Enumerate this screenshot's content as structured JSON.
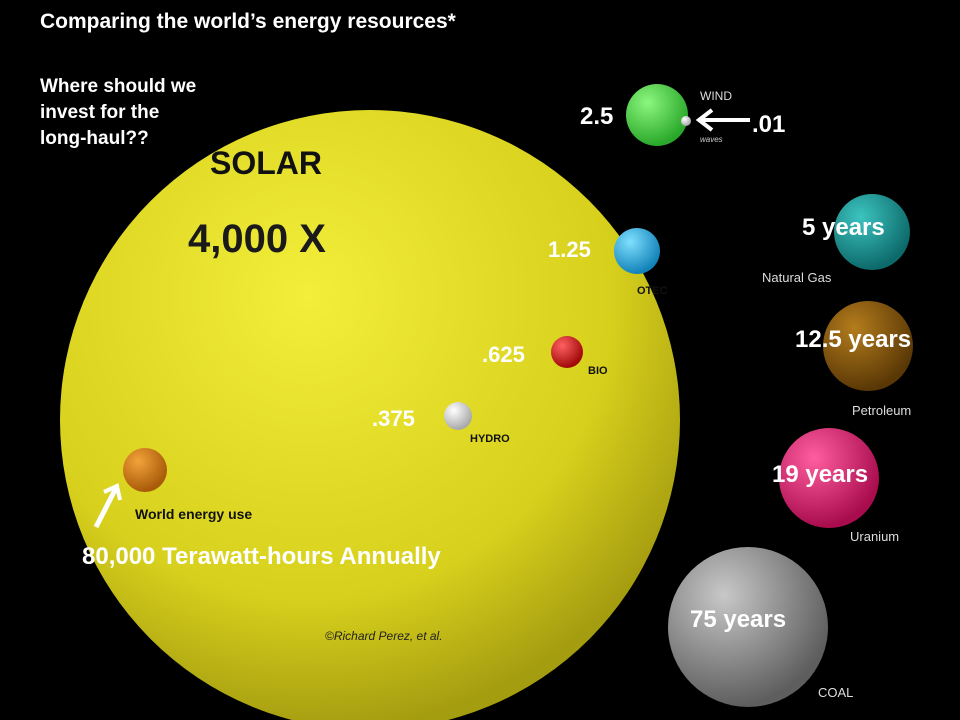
{
  "title": "Comparing the world’s energy resources*",
  "question": [
    "Where should we",
    "invest for the",
    "long-haul??"
  ],
  "solar": {
    "name": "SOLAR",
    "multiplier": "4,000 X",
    "credit": "©Richard Perez, et al."
  },
  "world": {
    "label": "World energy use",
    "annual": "80,000 Terawatt-hours Annually"
  },
  "renewables": [
    {
      "key": "wind",
      "label": "WIND",
      "value": ".01",
      "value2": "2.5",
      "sub": "waves"
    },
    {
      "key": "otec",
      "label": "OTEC",
      "value": "1.25"
    },
    {
      "key": "bio",
      "label": "BIO",
      "value": ".625"
    },
    {
      "key": "hydro",
      "label": "HYDRO",
      "value": ".375"
    }
  ],
  "finite": [
    {
      "key": "natural-gas",
      "label": "Natural Gas",
      "years": "5 years"
    },
    {
      "key": "petroleum",
      "label": "Petroleum",
      "years": "12.5 years"
    },
    {
      "key": "uranium",
      "label": "Uranium",
      "years": "19 years"
    },
    {
      "key": "coal",
      "label": "COAL",
      "years": "75 years"
    }
  ],
  "colors": {
    "solar": "#d9d21a",
    "world": "#d4780e",
    "wind": "#4fd44a",
    "otec": "#2fb5e6",
    "bio": "#e01414",
    "hydro": "#e6e6e6",
    "natural_gas": "#1fa0a0",
    "petroleum": "#8a5a0c",
    "uranium": "#e0196e",
    "coal": "#9a9a9a"
  }
}
